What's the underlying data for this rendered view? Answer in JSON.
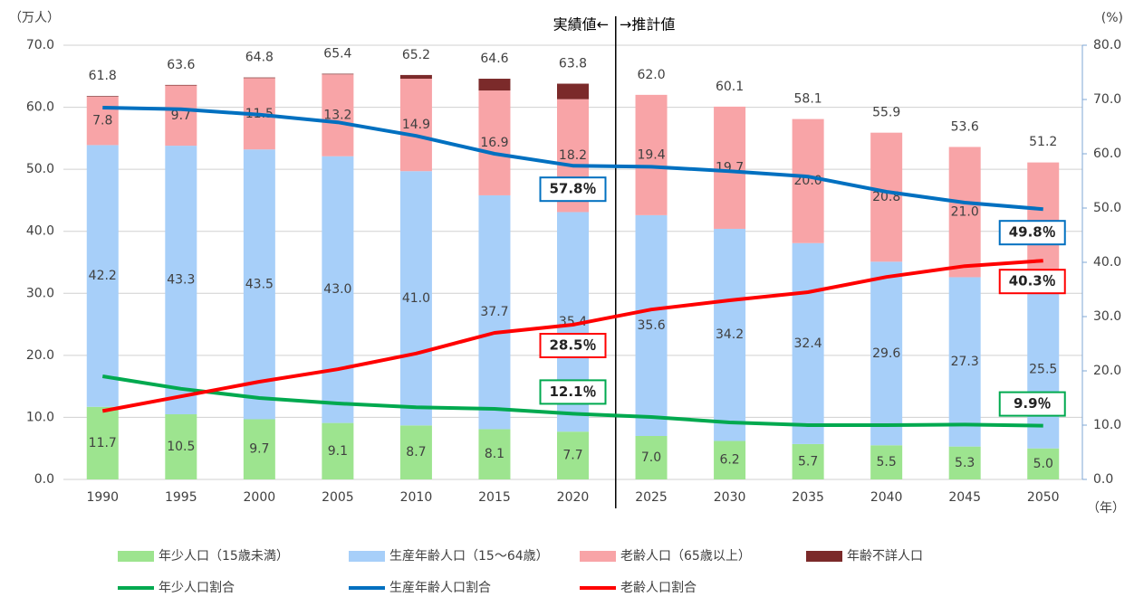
{
  "chart_data": {
    "type": "bar",
    "categories": [
      "1990",
      "1995",
      "2000",
      "2005",
      "2010",
      "2015",
      "2020",
      "2025",
      "2030",
      "2035",
      "2040",
      "2045",
      "2050"
    ],
    "y_axis_label": "（万人）",
    "y2_axis_label": "(%)",
    "x_axis_label": "（年）",
    "divider_left": "実績値←",
    "divider_right": "→推計値",
    "ylim": [
      0,
      70
    ],
    "yticks": [
      {
        "value": 0,
        "label": "0.0"
      },
      {
        "value": 10,
        "label": "10.0"
      },
      {
        "value": 20,
        "label": "20.0"
      },
      {
        "value": 30,
        "label": "30.0"
      },
      {
        "value": 40,
        "label": "40.0"
      },
      {
        "value": 50,
        "label": "50.0"
      },
      {
        "value": 60,
        "label": "60.0"
      },
      {
        "value": 70,
        "label": "70.0"
      }
    ],
    "y2lim": [
      0,
      80
    ],
    "y2ticks": [
      {
        "value": 0,
        "label": "0.0"
      },
      {
        "value": 10,
        "label": "10.0"
      },
      {
        "value": 20,
        "label": "20.0"
      },
      {
        "value": 30,
        "label": "30.0"
      },
      {
        "value": 40,
        "label": "40.0"
      },
      {
        "value": 50,
        "label": "50.0"
      },
      {
        "value": 60,
        "label": "60.0"
      },
      {
        "value": 70,
        "label": "70.0"
      },
      {
        "value": 80,
        "label": "80.0"
      }
    ],
    "grid": true,
    "totals": [
      61.8,
      63.6,
      64.8,
      65.4,
      65.2,
      64.6,
      63.8,
      62.0,
      60.1,
      58.1,
      55.9,
      53.6,
      51.2
    ],
    "total_labels": [
      "61.8",
      "63.6",
      "64.8",
      "65.4",
      "65.2",
      "64.6",
      "63.8",
      "62.0",
      "60.1",
      "58.1",
      "55.9",
      "53.6",
      "51.2"
    ],
    "series": [
      {
        "name": "年少人口（15歳未満）",
        "type": "bar",
        "color": "#9de48f",
        "values": [
          11.7,
          10.5,
          9.7,
          9.1,
          8.7,
          8.1,
          7.7,
          7.0,
          6.2,
          5.7,
          5.5,
          5.3,
          5.0
        ],
        "value_labels": [
          "11.7",
          "10.5",
          "9.7",
          "9.1",
          "8.7",
          "8.1",
          "7.7",
          "7.0",
          "6.2",
          "5.7",
          "5.5",
          "5.3",
          "5.0"
        ]
      },
      {
        "name": "生産年齢人口（15～64歳）",
        "type": "bar",
        "color": "#a7cff9",
        "values": [
          42.2,
          43.3,
          43.5,
          43.0,
          41.0,
          37.7,
          35.4,
          35.6,
          34.2,
          32.4,
          29.6,
          27.3,
          25.5
        ],
        "value_labels": [
          "42.2",
          "43.3",
          "43.5",
          "43.0",
          "41.0",
          "37.7",
          "35.4",
          "35.6",
          "34.2",
          "32.4",
          "29.6",
          "27.3",
          "25.5"
        ]
      },
      {
        "name": "老齢人口（65歳以上）",
        "type": "bar",
        "color": "#f8a4a7",
        "values": [
          7.8,
          9.7,
          11.5,
          13.2,
          14.9,
          16.9,
          18.2,
          19.4,
          19.7,
          20.0,
          20.8,
          21.0,
          20.6
        ],
        "value_labels": [
          "7.8",
          "9.7",
          "11.5",
          "13.2",
          "14.9",
          "16.9",
          "18.2",
          "19.4",
          "19.7",
          "20.0",
          "20.8",
          "21.0",
          "20.6"
        ]
      },
      {
        "name": "年齢不詳人口",
        "type": "bar",
        "color": "#7b2a2a",
        "values": [
          0.1,
          0.1,
          0.1,
          0.1,
          0.6,
          1.9,
          2.5,
          null,
          null,
          null,
          null,
          null,
          null
        ]
      },
      {
        "name": "年少人口割合",
        "type": "line",
        "axis": "y2",
        "color": "#00a94f",
        "values": [
          19.0,
          16.7,
          15.0,
          14.0,
          13.3,
          13.0,
          12.1,
          11.5,
          10.5,
          10.0,
          10.0,
          10.1,
          9.9
        ],
        "value_labels": [
          null,
          null,
          null,
          null,
          null,
          null,
          "12.1％",
          null,
          null,
          null,
          null,
          null,
          "9.9％"
        ]
      },
      {
        "name": "生産年齢人口割合",
        "type": "line",
        "axis": "y2",
        "color": "#0070c0",
        "values": [
          68.5,
          68.2,
          67.2,
          65.8,
          63.3,
          60.0,
          57.8,
          57.6,
          56.8,
          55.8,
          53.0,
          51.0,
          49.8
        ],
        "value_labels": [
          null,
          null,
          null,
          null,
          null,
          null,
          "57.8％",
          null,
          null,
          null,
          null,
          null,
          "49.8％"
        ]
      },
      {
        "name": "老齢人口割合",
        "type": "line",
        "axis": "y2",
        "color": "#ff0000",
        "values": [
          12.6,
          15.3,
          18.0,
          20.3,
          23.2,
          27.0,
          28.5,
          31.3,
          33.0,
          34.5,
          37.3,
          39.3,
          40.3
        ],
        "value_labels": [
          null,
          null,
          null,
          null,
          null,
          null,
          "28.5％",
          null,
          null,
          null,
          null,
          null,
          "40.3％"
        ]
      }
    ]
  }
}
